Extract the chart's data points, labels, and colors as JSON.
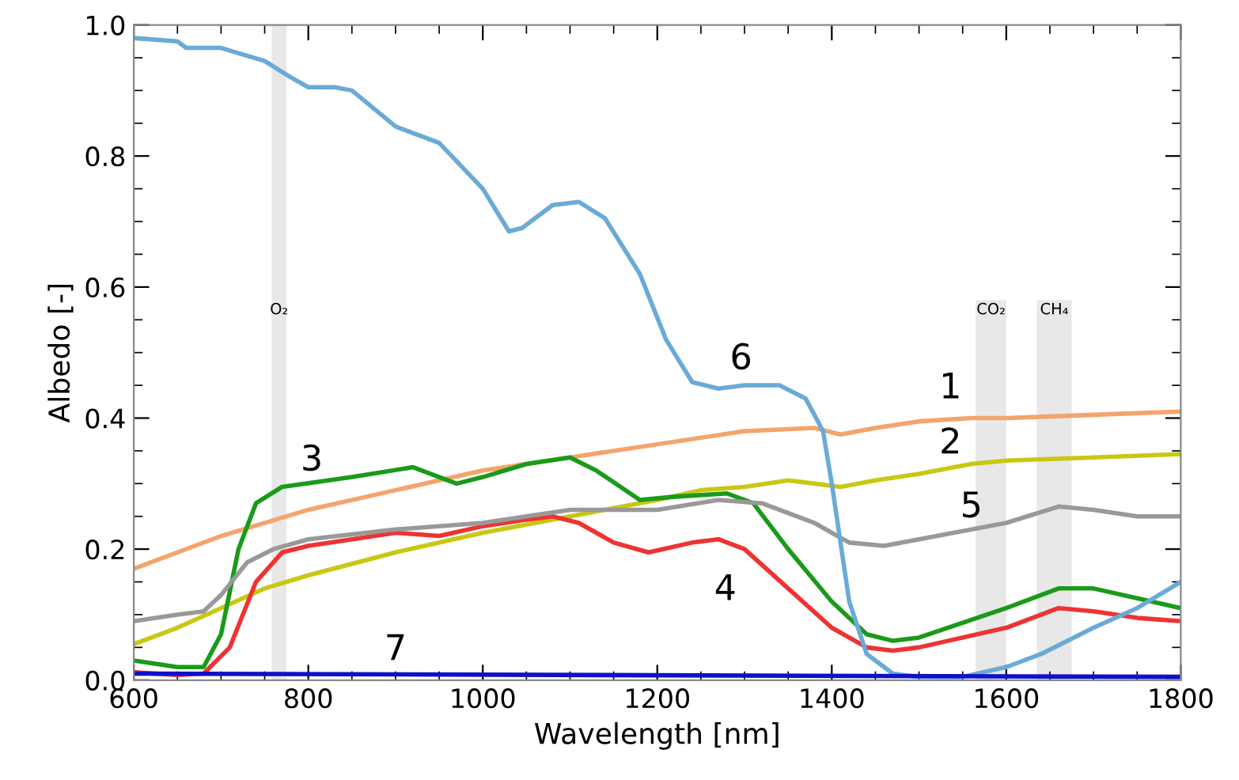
{
  "chart_data": {
    "type": "line",
    "xlabel": "Wavelength [nm]",
    "ylabel": "Albedo [-]",
    "xlim": [
      600,
      1800
    ],
    "ylim": [
      0,
      1.0
    ],
    "xticks": [
      600,
      800,
      1000,
      1200,
      1400,
      1600,
      1800
    ],
    "yticks": [
      {
        "value": 0,
        "label": "0.0"
      },
      {
        "value": 0.2,
        "label": "0.2"
      },
      {
        "value": 0.4,
        "label": "0.4"
      },
      {
        "value": 0.6,
        "label": "0.6"
      },
      {
        "value": 0.8,
        "label": "0.8"
      },
      {
        "value": 1.0,
        "label": "1.0"
      }
    ],
    "grid": false,
    "marker": "none",
    "line_style": "solid",
    "bands": [
      {
        "axis": "x",
        "from": 758,
        "to": 775,
        "label": "O₂",
        "color": "#e8e8e8"
      },
      {
        "axis": "x",
        "from": 1565,
        "to": 1600,
        "label": "CO₂",
        "color": "#e8e8e8"
      },
      {
        "axis": "x",
        "from": 1635,
        "to": 1675,
        "label": "CH₄",
        "color": "#e8e8e8"
      }
    ],
    "series": [
      {
        "name": "1",
        "color": "#f4a46c",
        "x": [
          600,
          700,
          800,
          900,
          1000,
          1100,
          1200,
          1300,
          1380,
          1410,
          1450,
          1500,
          1560,
          1600,
          1700,
          1800
        ],
        "values": [
          0.17,
          0.22,
          0.26,
          0.29,
          0.32,
          0.34,
          0.36,
          0.38,
          0.385,
          0.375,
          0.385,
          0.395,
          0.4,
          0.4,
          0.405,
          0.41
        ]
      },
      {
        "name": "2",
        "color": "#c8c814",
        "x": [
          600,
          650,
          700,
          750,
          800,
          900,
          1000,
          1100,
          1200,
          1250,
          1300,
          1350,
          1410,
          1450,
          1500,
          1560,
          1600,
          1700,
          1800
        ],
        "values": [
          0.055,
          0.08,
          0.11,
          0.14,
          0.16,
          0.195,
          0.225,
          0.25,
          0.275,
          0.29,
          0.295,
          0.305,
          0.295,
          0.305,
          0.315,
          0.33,
          0.335,
          0.34,
          0.345
        ]
      },
      {
        "name": "3",
        "color": "#1a9a1a",
        "x": [
          600,
          650,
          680,
          700,
          720,
          740,
          770,
          850,
          920,
          970,
          1000,
          1050,
          1100,
          1130,
          1180,
          1220,
          1280,
          1310,
          1350,
          1400,
          1440,
          1470,
          1500,
          1600,
          1660,
          1700,
          1750,
          1800
        ],
        "values": [
          0.03,
          0.02,
          0.02,
          0.07,
          0.2,
          0.27,
          0.295,
          0.31,
          0.325,
          0.3,
          0.31,
          0.33,
          0.34,
          0.32,
          0.275,
          0.28,
          0.285,
          0.27,
          0.2,
          0.12,
          0.07,
          0.06,
          0.065,
          0.11,
          0.14,
          0.14,
          0.125,
          0.11
        ]
      },
      {
        "name": "4",
        "color": "#ee3333",
        "x": [
          600,
          650,
          680,
          710,
          740,
          770,
          800,
          850,
          900,
          950,
          1000,
          1050,
          1080,
          1110,
          1150,
          1190,
          1240,
          1270,
          1300,
          1350,
          1400,
          1440,
          1470,
          1500,
          1600,
          1660,
          1700,
          1750,
          1800
        ],
        "values": [
          0.012,
          0.008,
          0.01,
          0.05,
          0.15,
          0.195,
          0.205,
          0.215,
          0.225,
          0.22,
          0.235,
          0.245,
          0.25,
          0.24,
          0.21,
          0.195,
          0.21,
          0.215,
          0.2,
          0.14,
          0.08,
          0.05,
          0.045,
          0.05,
          0.08,
          0.11,
          0.105,
          0.095,
          0.09
        ]
      },
      {
        "name": "5",
        "color": "#999999",
        "x": [
          600,
          650,
          680,
          700,
          730,
          760,
          800,
          900,
          1000,
          1100,
          1200,
          1270,
          1320,
          1380,
          1420,
          1460,
          1500,
          1600,
          1660,
          1700,
          1750,
          1800
        ],
        "values": [
          0.09,
          0.1,
          0.105,
          0.13,
          0.18,
          0.2,
          0.215,
          0.23,
          0.24,
          0.26,
          0.26,
          0.275,
          0.27,
          0.24,
          0.21,
          0.205,
          0.215,
          0.24,
          0.265,
          0.26,
          0.25,
          0.25
        ]
      },
      {
        "name": "6",
        "color": "#6aaad6",
        "x": [
          600,
          650,
          660,
          700,
          750,
          780,
          800,
          830,
          850,
          900,
          950,
          1000,
          1030,
          1045,
          1080,
          1110,
          1140,
          1180,
          1210,
          1240,
          1270,
          1300,
          1340,
          1370,
          1390,
          1400,
          1420,
          1440,
          1470,
          1500,
          1550,
          1600,
          1640,
          1700,
          1750,
          1800
        ],
        "values": [
          0.98,
          0.975,
          0.965,
          0.965,
          0.945,
          0.92,
          0.905,
          0.905,
          0.9,
          0.845,
          0.82,
          0.75,
          0.685,
          0.69,
          0.725,
          0.73,
          0.705,
          0.62,
          0.52,
          0.455,
          0.445,
          0.45,
          0.45,
          0.43,
          0.38,
          0.3,
          0.12,
          0.04,
          0.01,
          0.005,
          0.005,
          0.02,
          0.04,
          0.08,
          0.11,
          0.15
        ]
      },
      {
        "name": "7",
        "color": "#1010c8",
        "x": [
          600,
          1800
        ],
        "values": [
          0.01,
          0.005
        ]
      }
    ]
  }
}
